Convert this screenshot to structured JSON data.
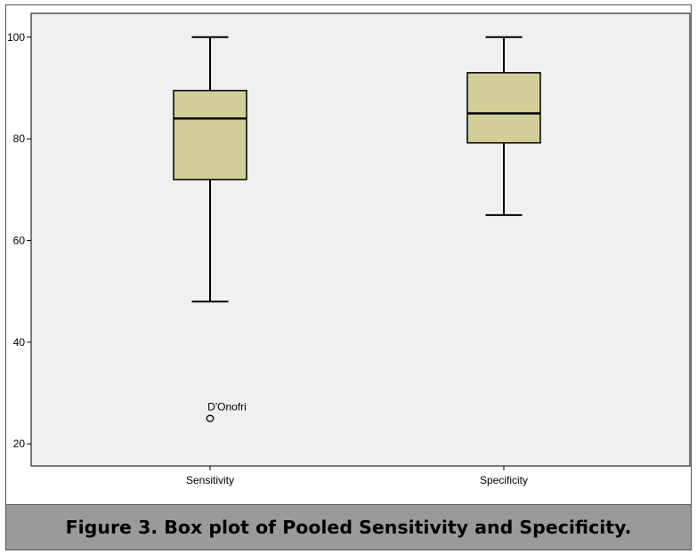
{
  "caption": "Figure 3. Box plot of Pooled Sensitivity and Specificity.",
  "chart_data": {
    "type": "boxplot",
    "title": "",
    "xlabel": "",
    "ylabel": "",
    "ylim": [
      15,
      105
    ],
    "yticks": [
      20,
      40,
      60,
      80,
      100
    ],
    "grid": false,
    "legend": "none",
    "colors": {
      "plot_background": "#f0f0f0",
      "box_fill": "#d3ce98",
      "stroke": "#000000"
    },
    "categories": [
      "Sensitivity",
      "Specificity"
    ],
    "boxes": [
      {
        "category": "Sensitivity",
        "whisker_low": 48,
        "q1": 72,
        "median": 84,
        "q3": 89.5,
        "whisker_high": 100,
        "outliers": [
          {
            "value": 25,
            "label": "D'Onofri"
          }
        ]
      },
      {
        "category": "Specificity",
        "whisker_low": 65,
        "q1": 79.2,
        "median": 85,
        "q3": 93,
        "whisker_high": 100,
        "outliers": []
      }
    ]
  }
}
